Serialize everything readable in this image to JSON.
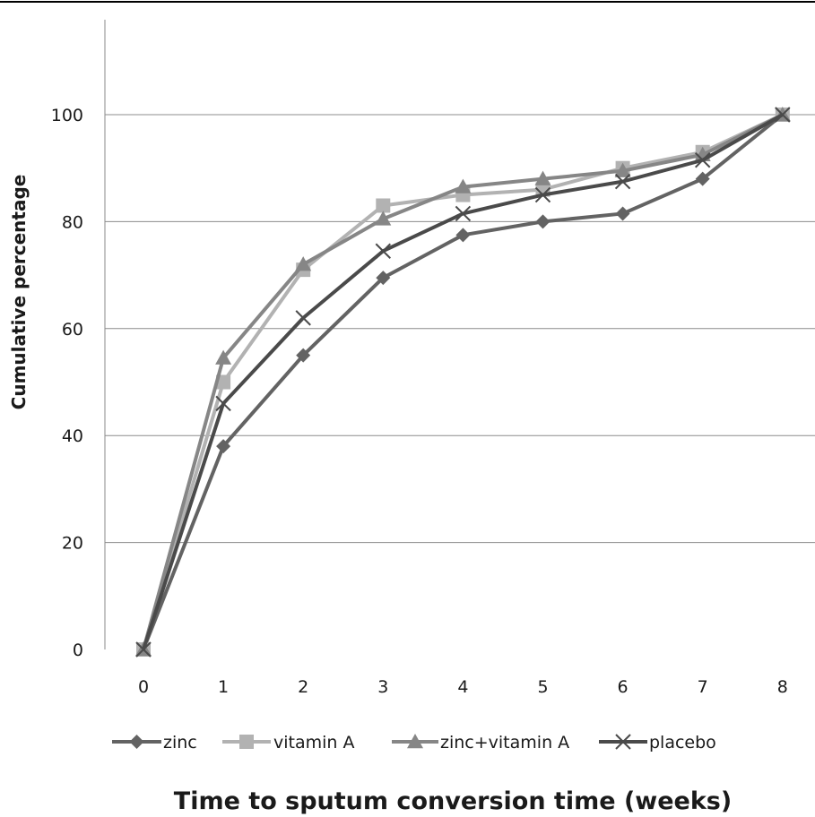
{
  "chart_data": {
    "type": "line",
    "xlabel": "Time to sputum conversion time (weeks)",
    "ylabel": "Cumulative percentage",
    "x": [
      0,
      1,
      2,
      3,
      4,
      5,
      6,
      7,
      8
    ],
    "x_tick_labels": [
      "0",
      "1",
      "2",
      "3",
      "4",
      "5",
      "6",
      "7",
      "8"
    ],
    "ylim": [
      0,
      120
    ],
    "y_ticks": [
      0,
      20,
      40,
      60,
      80,
      100
    ],
    "y_tick_labels": [
      "0",
      "20",
      "40",
      "60",
      "80",
      "100"
    ],
    "grid": true,
    "legend_position": "bottom",
    "series": [
      {
        "name": "zinc",
        "color": "#636363",
        "marker": "diamond",
        "values": [
          0,
          38,
          55,
          69.5,
          77.5,
          80,
          81.5,
          88,
          100
        ]
      },
      {
        "name": "vitamin A",
        "color": "#b2b2b2",
        "marker": "square",
        "values": [
          0,
          50,
          71,
          83,
          85,
          86,
          90,
          93,
          100
        ]
      },
      {
        "name": "zinc+vitamin A",
        "color": "#868686",
        "marker": "triangle",
        "values": [
          0,
          54.5,
          72,
          80.5,
          86.5,
          88,
          89.5,
          92.5,
          100
        ]
      },
      {
        "name": "placebo",
        "color": "#4a4a4a",
        "marker": "x",
        "values": [
          0,
          46,
          62,
          74.5,
          81.5,
          85,
          87.5,
          91.5,
          100
        ]
      }
    ]
  }
}
